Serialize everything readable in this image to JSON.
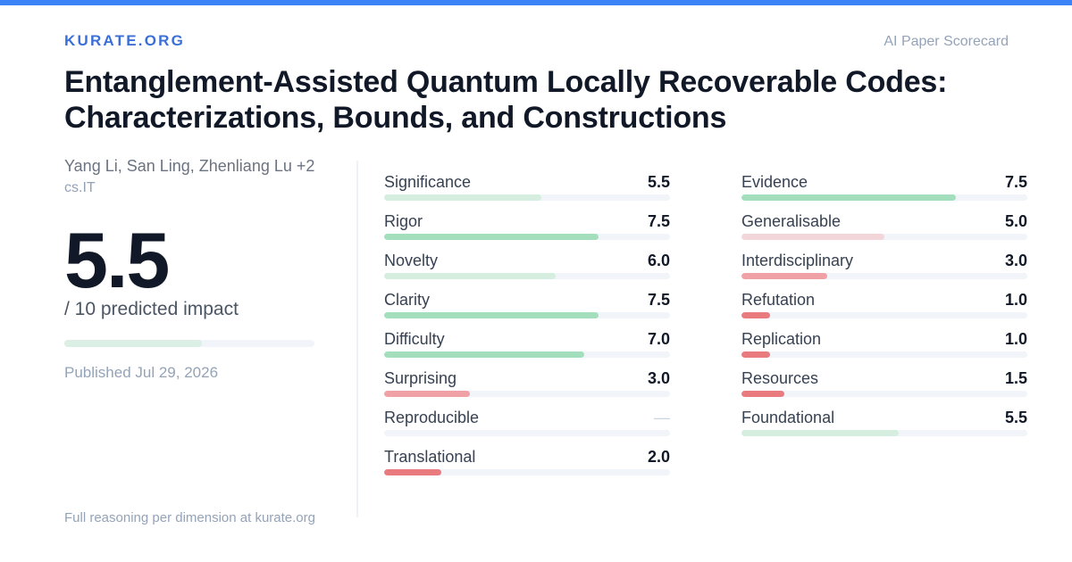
{
  "header": {
    "brand": "KURATE.ORG",
    "label": "AI Paper Scorecard"
  },
  "paper": {
    "title": "Entanglement-Assisted Quantum Locally Recoverable Codes: Characterizations, Bounds, and Constructions",
    "authors": "Yang Li, San Ling, Zhenliang Lu +2",
    "category": "cs.IT",
    "score": "5.5",
    "score_value": 5.5,
    "score_suffix": "/ 10 predicted impact",
    "published": "Published Jul 29, 2026"
  },
  "footer": "Full reasoning per dimension at kurate.org",
  "colors": {
    "accent": "#3b82f6",
    "strong_green": "#a3dfbc",
    "pale_green": "#d5eedf",
    "pale_red": "#f3d6d9",
    "light_red": "#f0a1a5",
    "red": "#e97a7d"
  },
  "metrics_left": [
    {
      "name": "Significance",
      "value": "5.5",
      "score": 5.5,
      "color": "#d5eedf"
    },
    {
      "name": "Rigor",
      "value": "7.5",
      "score": 7.5,
      "color": "#a3dfbc"
    },
    {
      "name": "Novelty",
      "value": "6.0",
      "score": 6.0,
      "color": "#d5eedf"
    },
    {
      "name": "Clarity",
      "value": "7.5",
      "score": 7.5,
      "color": "#a3dfbc"
    },
    {
      "name": "Difficulty",
      "value": "7.0",
      "score": 7.0,
      "color": "#a3dfbc"
    },
    {
      "name": "Surprising",
      "value": "3.0",
      "score": 3.0,
      "color": "#f0a1a5"
    },
    {
      "name": "Reproducible",
      "value": "—",
      "score": 0,
      "color": "#f1f5f9"
    },
    {
      "name": "Translational",
      "value": "2.0",
      "score": 2.0,
      "color": "#e97a7d"
    }
  ],
  "metrics_right": [
    {
      "name": "Evidence",
      "value": "7.5",
      "score": 7.5,
      "color": "#a3dfbc"
    },
    {
      "name": "Generalisable",
      "value": "5.0",
      "score": 5.0,
      "color": "#f3d6d9"
    },
    {
      "name": "Interdisciplinary",
      "value": "3.0",
      "score": 3.0,
      "color": "#f0a1a5"
    },
    {
      "name": "Refutation",
      "value": "1.0",
      "score": 1.0,
      "color": "#e97a7d"
    },
    {
      "name": "Replication",
      "value": "1.0",
      "score": 1.0,
      "color": "#e97a7d"
    },
    {
      "name": "Resources",
      "value": "1.5",
      "score": 1.5,
      "color": "#e97a7d"
    },
    {
      "name": "Foundational",
      "value": "5.5",
      "score": 5.5,
      "color": "#d5eedf"
    }
  ]
}
